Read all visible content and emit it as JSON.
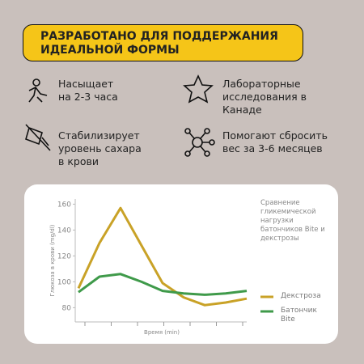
{
  "banner": {
    "lines": [
      "РАЗРАБОТАНО ДЛЯ ПОДДЕРЖАНИЯ",
      "ИДЕАЛЬНОЙ ФОРМЫ"
    ]
  },
  "features": [
    {
      "lines": [
        "Насыщает",
        "на 2-3 часа"
      ]
    },
    {
      "lines": [
        "Лабораторные",
        "исследования в",
        "Канаде"
      ]
    },
    {
      "lines": [
        "Стабилизирует",
        "уровень сахара",
        "в крови"
      ]
    },
    {
      "lines": [
        "Помогают сбросить",
        "вес за 3-6 месяцев"
      ]
    }
  ],
  "chart_data": {
    "type": "line",
    "subtitle": "Сравнение гликемической нагрузки батончиков Bite и декстрозы",
    "x_label": "Время (min)",
    "y_label": "Глюкоза в крови (mg/dl)",
    "categories": [
      null,
      null,
      null,
      null,
      null,
      null,
      null,
      null,
      null
    ],
    "series": [
      {
        "name": "Декстроза",
        "color": "#c9a227",
        "values": [
          95,
          130,
          157,
          128,
          99,
          88,
          82,
          84,
          87
        ]
      },
      {
        "name": "Батончик Bite",
        "color": "#3f9a4a",
        "values": [
          92,
          104,
          106,
          100,
          93,
          91,
          90,
          91,
          93
        ]
      }
    ],
    "ylim": [
      69,
      164
    ],
    "yticks": [
      80,
      100,
      120,
      140,
      160
    ]
  }
}
